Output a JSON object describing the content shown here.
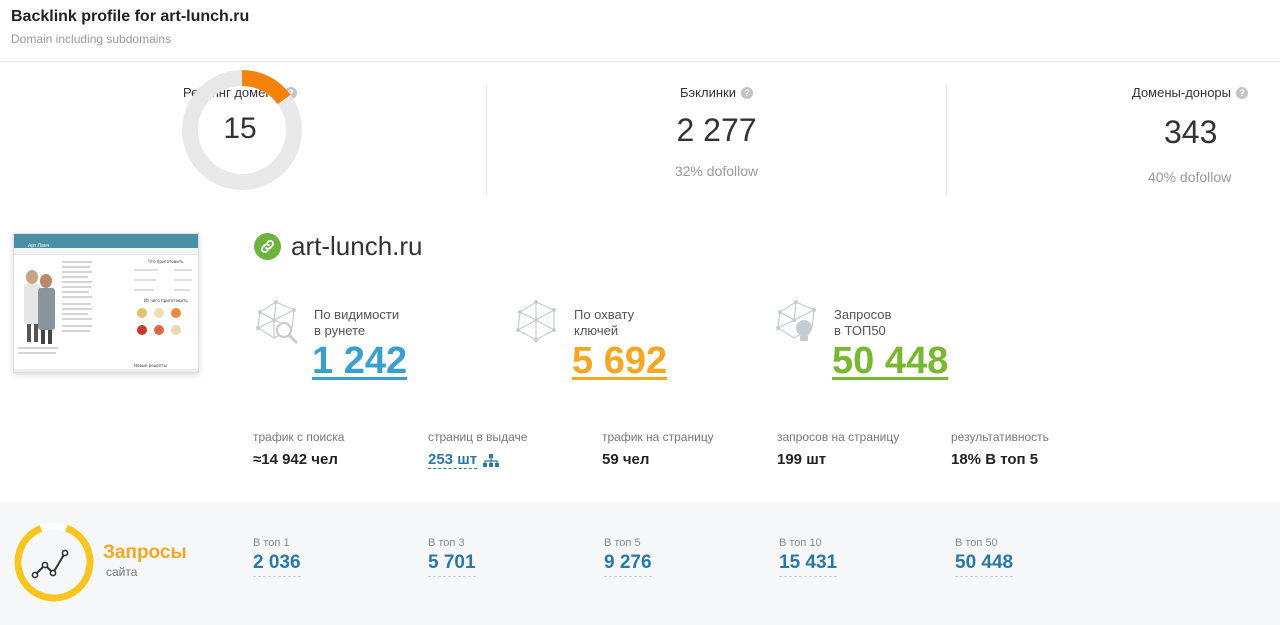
{
  "header": {
    "title": "Backlink profile for art-lunch.ru",
    "subtitle": "Domain including subdomains"
  },
  "domain_rating": {
    "label": "Рейтинг домена",
    "value": "15",
    "fraction": 0.15
  },
  "backlinks": {
    "label": "Бэклинки",
    "value": "2 277",
    "sub": "32% dofollow"
  },
  "referring_domains": {
    "label": "Домены-доноры",
    "value": "343",
    "sub": "40% dofollow"
  },
  "site": {
    "domain": "art-lunch.ru"
  },
  "thumbnail": {
    "brand": "Арт Ланч",
    "heading1": "Что приготовить",
    "heading2": "Из чего приготовить",
    "heading3": "Новые рецепты"
  },
  "metrics": [
    {
      "label_line1": "По видимости",
      "label_line2": "в рунете",
      "value": "1 242",
      "color": "#3a9fcf"
    },
    {
      "label_line1": "По охвату",
      "label_line2": "ключей",
      "value": "5 692",
      "color": "#f5a623"
    },
    {
      "label_line1": "Запросов",
      "label_line2": "в ТОП50",
      "value": "50 448",
      "color": "#7ab730"
    }
  ],
  "stats": [
    {
      "label": "трафик с поиска",
      "value": "≈14 942 чел"
    },
    {
      "label": "страниц в выдаче",
      "value": "253 шт"
    },
    {
      "label": "трафик на страницу",
      "value": "59 чел"
    },
    {
      "label": "запросов на страницу",
      "value": "199 шт"
    },
    {
      "label": "результативность",
      "value": "18% В топ 5"
    }
  ],
  "queries": {
    "title": "Запросы",
    "subtitle": "сайта",
    "tops": [
      {
        "label": "В топ 1",
        "value": "2 036"
      },
      {
        "label": "В топ 3",
        "value": "5 701"
      },
      {
        "label": "В топ 5",
        "value": "9 276"
      },
      {
        "label": "В топ 10",
        "value": "15 431"
      },
      {
        "label": "В топ 50",
        "value": "50 448"
      }
    ]
  },
  "colors": {
    "gauge_fill": "#f5820a",
    "gauge_track": "#e8e8e8",
    "link_icon": "#6db33f",
    "accent_blue": "#2a78a8",
    "queries_orange": "#f5a623",
    "queries_gauge": "#f7c51e"
  }
}
